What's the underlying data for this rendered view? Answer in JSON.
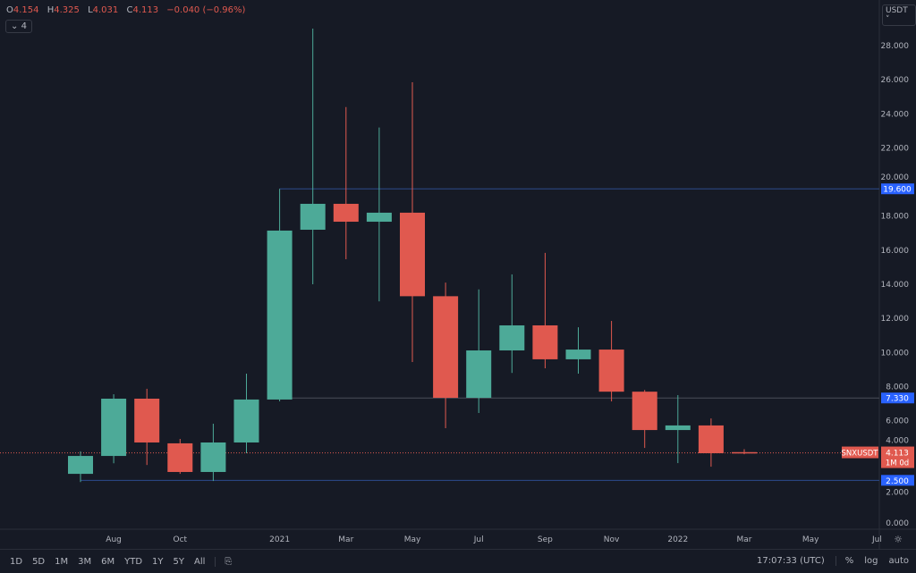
{
  "legend": {
    "o_label": "O",
    "o": "4.154",
    "h_label": "H",
    "h": "4.325",
    "l_label": "L",
    "l": "4.031",
    "c_label": "C",
    "c": "4.113",
    "change": "−0.040 (−0.96%)"
  },
  "indicator_toggle": "4",
  "currency": "USDT",
  "bottom": {
    "ranges": [
      "1D",
      "5D",
      "1M",
      "3M",
      "6M",
      "YTD",
      "1Y",
      "5Y",
      "All"
    ],
    "time": "17:07:33 (UTC)",
    "percent": "%",
    "log": "log",
    "auto": "auto"
  },
  "colors": {
    "up": "#4daa98",
    "down": "#e0594f",
    "level": "#2c4a8c",
    "bg": "#161a25"
  },
  "chart_data": {
    "type": "candlestick",
    "symbol": "SNXUSDT",
    "countdown": "1M 0d",
    "ylim": [
      0,
      29
    ],
    "yticks": [
      0,
      2,
      4,
      6,
      8,
      10,
      12,
      14,
      16,
      18,
      20,
      22,
      24,
      26,
      28
    ],
    "ytick_labels": [
      "0.000",
      "2.000",
      "4.000",
      "6.000",
      "8.000",
      "10.000",
      "12.000",
      "14.000",
      "16.000",
      "18.000",
      "20.000",
      "22.000",
      "24.000",
      "26.000",
      "28.000"
    ],
    "xtick_labels": [
      {
        "label": "Aug",
        "i": 1
      },
      {
        "label": "Oct",
        "i": 3
      },
      {
        "label": "2021",
        "i": 6
      },
      {
        "label": "Mar",
        "i": 8
      },
      {
        "label": "May",
        "i": 10
      },
      {
        "label": "Jul",
        "i": 12
      },
      {
        "label": "Sep",
        "i": 14
      },
      {
        "label": "Nov",
        "i": 16
      },
      {
        "label": "2022",
        "i": 18
      },
      {
        "label": "Mar",
        "i": 20
      },
      {
        "label": "May",
        "i": 22
      },
      {
        "label": "Jul",
        "i": 24
      }
    ],
    "candles": [
      {
        "o": 2.88,
        "h": 4.2,
        "l": 2.4,
        "c": 3.93
      },
      {
        "o": 3.93,
        "h": 7.55,
        "l": 3.5,
        "c": 7.29
      },
      {
        "o": 7.29,
        "h": 7.87,
        "l": 3.4,
        "c": 4.72
      },
      {
        "o": 4.67,
        "h": 4.93,
        "l": 2.88,
        "c": 2.99
      },
      {
        "o": 2.99,
        "h": 5.82,
        "l": 2.46,
        "c": 4.72
      },
      {
        "o": 4.72,
        "h": 8.76,
        "l": 4.09,
        "c": 7.24
      },
      {
        "o": 7.24,
        "h": 19.6,
        "l": 7.13,
        "c": 17.15
      },
      {
        "o": 17.2,
        "h": 29.0,
        "l": 14.0,
        "c": 18.72
      },
      {
        "o": 18.72,
        "h": 24.4,
        "l": 15.47,
        "c": 17.67
      },
      {
        "o": 17.67,
        "h": 23.2,
        "l": 13.0,
        "c": 18.2
      },
      {
        "o": 18.2,
        "h": 25.85,
        "l": 9.44,
        "c": 13.3
      },
      {
        "o": 13.3,
        "h": 14.1,
        "l": 5.56,
        "c": 7.34
      },
      {
        "o": 7.34,
        "h": 13.7,
        "l": 6.45,
        "c": 10.12
      },
      {
        "o": 10.12,
        "h": 14.58,
        "l": 8.8,
        "c": 11.59
      },
      {
        "o": 11.59,
        "h": 15.84,
        "l": 9.07,
        "c": 9.6
      },
      {
        "o": 9.6,
        "h": 11.48,
        "l": 8.76,
        "c": 10.17
      },
      {
        "o": 10.17,
        "h": 11.85,
        "l": 7.13,
        "c": 7.7
      },
      {
        "o": 7.7,
        "h": 7.8,
        "l": 4.4,
        "c": 5.45
      },
      {
        "o": 5.45,
        "h": 7.5,
        "l": 3.51,
        "c": 5.72
      },
      {
        "o": 5.72,
        "h": 6.13,
        "l": 3.3,
        "c": 4.09
      },
      {
        "o": 4.154,
        "h": 4.325,
        "l": 4.031,
        "c": 4.113
      }
    ],
    "levels": [
      {
        "value": 19.6,
        "label": "19.600",
        "from": 6,
        "color": "#2c4a8c",
        "tag": "#2962ff"
      },
      {
        "value": 7.33,
        "label": "7.330",
        "from": 6,
        "color": "#4a4e59",
        "tag": "#2962ff"
      },
      {
        "value": 2.5,
        "label": "2.500",
        "from": 0,
        "color": "#2c4a8c",
        "tag": "#2962ff"
      }
    ],
    "last_price": {
      "value": 4.113,
      "label": "4.113"
    }
  }
}
